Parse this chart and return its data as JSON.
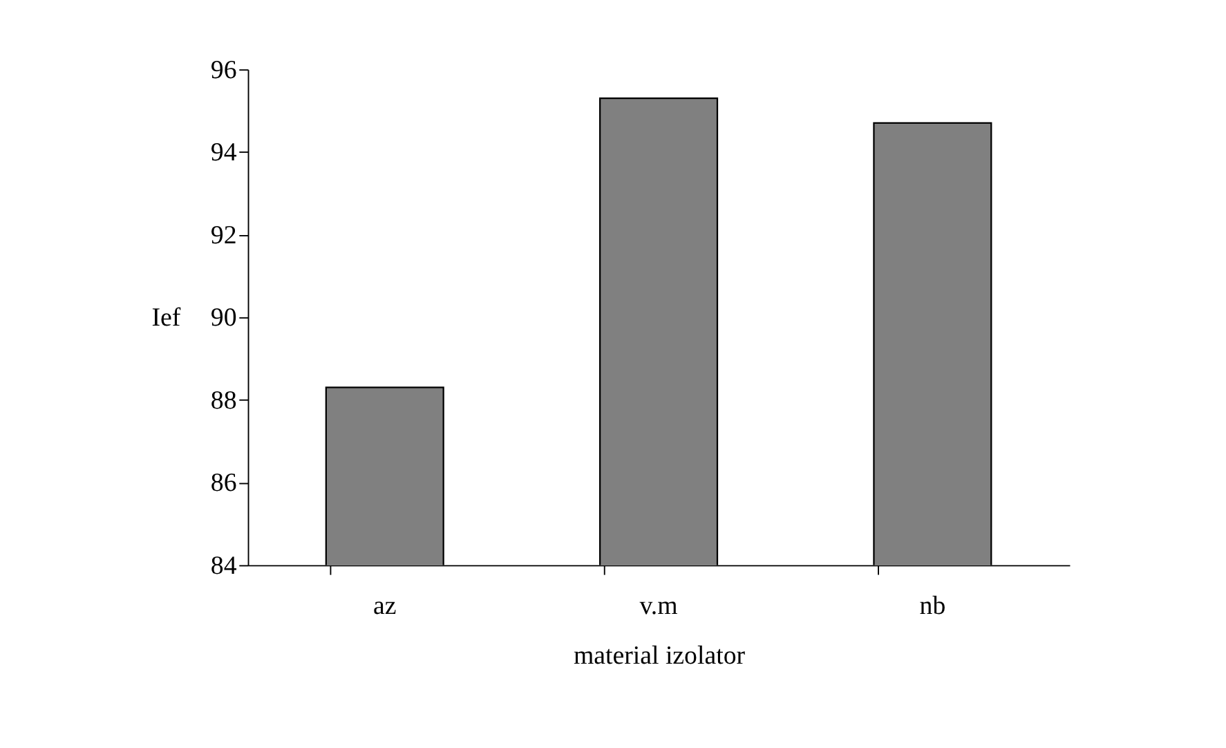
{
  "chart_data": {
    "type": "bar",
    "xlabel": "material izolator",
    "ylabel": "Ief",
    "categories": [
      "az",
      "v.m",
      "nb"
    ],
    "values": [
      88.3,
      95.3,
      94.7
    ],
    "color": "#808080",
    "ylim": [
      84,
      96
    ],
    "yticks": [
      84,
      86,
      88,
      90,
      92,
      94,
      96
    ],
    "grid": false
  }
}
